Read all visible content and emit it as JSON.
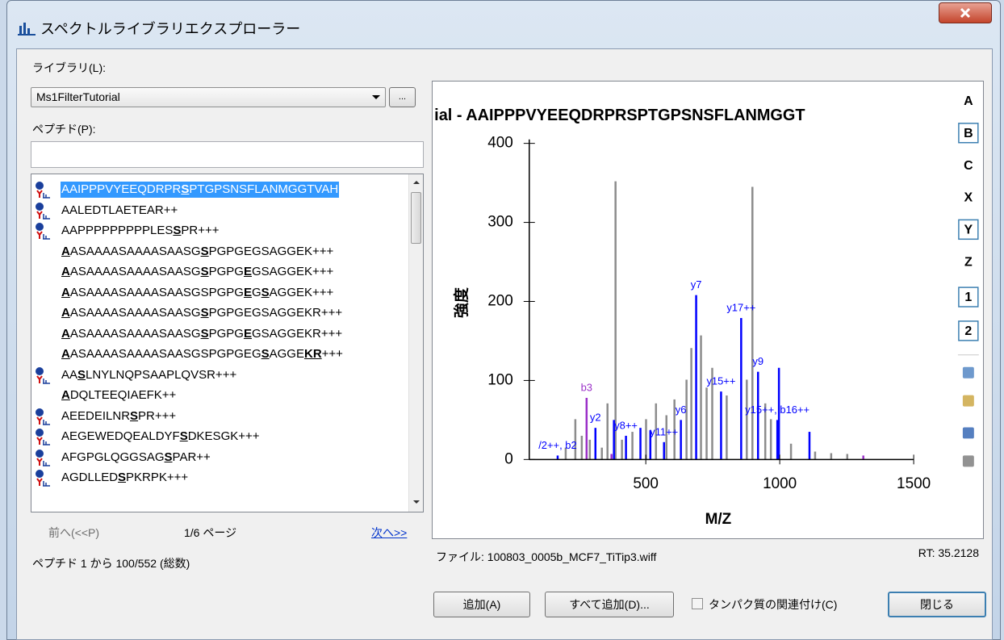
{
  "window": {
    "title": "スペクトルライブラリエクスプローラー"
  },
  "library": {
    "label": "ライブラリ(L):",
    "value": "Ms1FilterTutorial",
    "browse": "..."
  },
  "peptide": {
    "label": "ペプチド(P):"
  },
  "list": {
    "items": [
      {
        "phospho": true,
        "selected": true,
        "parts": [
          {
            "text": "AAIPPPVYEEQDRPR"
          },
          {
            "text": "S",
            "mod": true
          },
          {
            "text": "PTGPSNSFLANMGGTVAH"
          }
        ]
      },
      {
        "phospho": true,
        "parts": [
          {
            "text": "AALEDTLAETEAR++"
          }
        ]
      },
      {
        "phospho": true,
        "parts": [
          {
            "text": "AAPPPPPPPPPLES"
          },
          {
            "text": "S",
            "mod": true
          },
          {
            "text": "PR+++"
          }
        ]
      },
      {
        "phospho": false,
        "parts": [
          {
            "text": "A",
            "mod": true
          },
          {
            "text": "ASAAAASAAAASAASG"
          },
          {
            "text": "S",
            "mod": true
          },
          {
            "text": "PGPGEGSAGGEK+++"
          }
        ]
      },
      {
        "phospho": false,
        "parts": [
          {
            "text": "A",
            "mod": true
          },
          {
            "text": "ASAAAASAAAASAASG"
          },
          {
            "text": "S",
            "mod": true
          },
          {
            "text": "PGPG"
          },
          {
            "text": "E",
            "mod": true
          },
          {
            "text": "GSAGGEK+++"
          }
        ]
      },
      {
        "phospho": false,
        "parts": [
          {
            "text": "A",
            "mod": true
          },
          {
            "text": "ASAAAASAAAASAASGSPGPG"
          },
          {
            "text": "E",
            "mod": true
          },
          {
            "text": "G"
          },
          {
            "text": "S",
            "mod": true
          },
          {
            "text": "AGGEK+++"
          }
        ]
      },
      {
        "phospho": false,
        "parts": [
          {
            "text": "A",
            "mod": true
          },
          {
            "text": "ASAAAASAAAASAASG"
          },
          {
            "text": "S",
            "mod": true
          },
          {
            "text": "PGPGEGSAGGEKR+++"
          }
        ]
      },
      {
        "phospho": false,
        "parts": [
          {
            "text": "A",
            "mod": true
          },
          {
            "text": "ASAAAASAAAASAASG"
          },
          {
            "text": "S",
            "mod": true
          },
          {
            "text": "PGPG"
          },
          {
            "text": "E",
            "mod": true
          },
          {
            "text": "GSAGGEKR+++"
          }
        ]
      },
      {
        "phospho": false,
        "parts": [
          {
            "text": "A",
            "mod": true
          },
          {
            "text": "ASAAAASAAAASAASGSPGPGEG"
          },
          {
            "text": "S",
            "mod": true
          },
          {
            "text": "AGGE"
          },
          {
            "text": "KR",
            "mod": true
          },
          {
            "text": "+++"
          }
        ]
      },
      {
        "phospho": true,
        "parts": [
          {
            "text": "AA"
          },
          {
            "text": "S",
            "mod": true
          },
          {
            "text": "LNYLNQPSAAPLQVSR+++"
          }
        ]
      },
      {
        "phospho": false,
        "parts": [
          {
            "text": "A",
            "mod": true
          },
          {
            "text": "DQLTEEQIAEFK++"
          }
        ]
      },
      {
        "phospho": true,
        "parts": [
          {
            "text": "AEEDEILNR"
          },
          {
            "text": "S",
            "mod": true
          },
          {
            "text": "PR+++"
          }
        ]
      },
      {
        "phospho": true,
        "parts": [
          {
            "text": "AEGEWEDQEALDYF"
          },
          {
            "text": "S",
            "mod": true
          },
          {
            "text": "DKESGK+++"
          }
        ]
      },
      {
        "phospho": true,
        "parts": [
          {
            "text": "AFGPGLQGGSAG"
          },
          {
            "text": "S",
            "mod": true
          },
          {
            "text": "PAR++"
          }
        ]
      },
      {
        "phospho": true,
        "parts": [
          {
            "text": "AGDLLED"
          },
          {
            "text": "S",
            "mod": true
          },
          {
            "text": "PKRPK+++"
          }
        ]
      }
    ]
  },
  "paging": {
    "prev": "前へ(<<P)",
    "page": "1/6 ページ",
    "next": "次へ>>"
  },
  "count": "ペプチド 1 から 100/552 (総数)",
  "spectrum": {
    "title": "ial - AAIPPPVYEEQDRPRSPTGPSNSFLANMGGT",
    "xlabel": "M/Z",
    "ylabel": "強度",
    "xlim": [
      65,
      1500
    ],
    "ylim": [
      0,
      405
    ],
    "xticks": [
      500,
      1000,
      1500
    ],
    "yticks": [
      0,
      100,
      200,
      300,
      400
    ],
    "peaks": [
      {
        "mz": 201,
        "intensity": 15,
        "color": "#8c8c8c"
      },
      {
        "mz": 237,
        "intensity": 51,
        "color": "#8c8c8c"
      },
      {
        "mz": 261,
        "intensity": 30,
        "color": "#8c8c8c"
      },
      {
        "mz": 291,
        "intensity": 25,
        "color": "#8c8c8c"
      },
      {
        "mz": 336,
        "intensity": 15,
        "color": "#8c8c8c"
      },
      {
        "mz": 357,
        "intensity": 71,
        "color": "#8c8c8c"
      },
      {
        "mz": 387,
        "intensity": 352,
        "color": "#8c8c8c"
      },
      {
        "mz": 411,
        "intensity": 25,
        "color": "#8c8c8c"
      },
      {
        "mz": 450,
        "intensity": 35,
        "color": "#8c8c8c"
      },
      {
        "mz": 501,
        "intensity": 51,
        "color": "#8c8c8c"
      },
      {
        "mz": 538,
        "intensity": 71,
        "color": "#8c8c8c"
      },
      {
        "mz": 577,
        "intensity": 56,
        "color": "#8c8c8c"
      },
      {
        "mz": 607,
        "intensity": 76,
        "color": "#8c8c8c"
      },
      {
        "mz": 652,
        "intensity": 101,
        "color": "#8c8c8c"
      },
      {
        "mz": 670,
        "intensity": 141,
        "color": "#8c8c8c"
      },
      {
        "mz": 706,
        "intensity": 157,
        "color": "#8c8c8c"
      },
      {
        "mz": 727,
        "intensity": 91,
        "color": "#8c8c8c"
      },
      {
        "mz": 748,
        "intensity": 116,
        "color": "#8c8c8c"
      },
      {
        "mz": 802,
        "intensity": 81,
        "color": "#8c8c8c"
      },
      {
        "mz": 877,
        "intensity": 101,
        "color": "#8c8c8c"
      },
      {
        "mz": 898,
        "intensity": 345,
        "color": "#8c8c8c"
      },
      {
        "mz": 946,
        "intensity": 71,
        "color": "#8c8c8c"
      },
      {
        "mz": 967,
        "intensity": 51,
        "color": "#8c8c8c"
      },
      {
        "mz": 1042,
        "intensity": 20,
        "color": "#8c8c8c"
      },
      {
        "mz": 1132,
        "intensity": 10,
        "color": "#8c8c8c"
      },
      {
        "mz": 1192,
        "intensity": 8,
        "color": "#8c8c8c"
      },
      {
        "mz": 1252,
        "intensity": 7,
        "color": "#8c8c8c"
      },
      {
        "mz": 171,
        "intensity": 5,
        "color": "#0000ff",
        "label": "/2++, b2"
      },
      {
        "mz": 279,
        "intensity": 78,
        "color": "#9b30c8",
        "label": "b3"
      },
      {
        "mz": 312,
        "intensity": 40,
        "color": "#0000ff",
        "label": "y2"
      },
      {
        "mz": 372,
        "intensity": 7,
        "color": "#9b30c8"
      },
      {
        "mz": 381,
        "intensity": 50,
        "color": "#0000ff"
      },
      {
        "mz": 426,
        "intensity": 30,
        "color": "#0000ff",
        "label": "y8++"
      },
      {
        "mz": 480,
        "intensity": 40,
        "color": "#0000ff"
      },
      {
        "mz": 517,
        "intensity": 37,
        "color": "#0000ff"
      },
      {
        "mz": 568,
        "intensity": 22,
        "color": "#0000ff",
        "label": "y11++"
      },
      {
        "mz": 631,
        "intensity": 50,
        "color": "#0000ff",
        "label": "y6"
      },
      {
        "mz": 688,
        "intensity": 208,
        "color": "#0000ff",
        "label": "y7"
      },
      {
        "mz": 781,
        "intensity": 86,
        "color": "#0000ff",
        "label": "y15++"
      },
      {
        "mz": 856,
        "intensity": 179,
        "color": "#0000ff",
        "label": "y17++"
      },
      {
        "mz": 919,
        "intensity": 111,
        "color": "#0000ff",
        "label": "y9"
      },
      {
        "mz": 991,
        "intensity": 50,
        "color": "#0000ff",
        "label": "y15++, b16++"
      },
      {
        "mz": 997,
        "intensity": 116,
        "color": "#0000ff"
      },
      {
        "mz": 1111,
        "intensity": 35,
        "color": "#0000ff"
      },
      {
        "mz": 1312,
        "intensity": 5,
        "color": "#9b30c8"
      }
    ],
    "toolbar": {
      "ions": [
        {
          "text": "A",
          "on": false
        },
        {
          "text": "B",
          "on": true
        },
        {
          "text": "C",
          "on": false
        },
        {
          "text": "X",
          "on": false
        },
        {
          "text": "Y",
          "on": true
        },
        {
          "text": "Z",
          "on": false
        }
      ],
      "charges": [
        {
          "text": "1",
          "on": true
        },
        {
          "text": "2",
          "on": true
        }
      ]
    }
  },
  "file": "ファイル: 100803_0005b_MCF7_TiTip3.wiff",
  "rt": "RT: 35.2128",
  "buttons": {
    "add": "追加(A)",
    "add_all": "すべて追加(D)...",
    "associate": "タンパク質の関連付け(C)",
    "associate_checked": false,
    "close": "閉じる"
  }
}
